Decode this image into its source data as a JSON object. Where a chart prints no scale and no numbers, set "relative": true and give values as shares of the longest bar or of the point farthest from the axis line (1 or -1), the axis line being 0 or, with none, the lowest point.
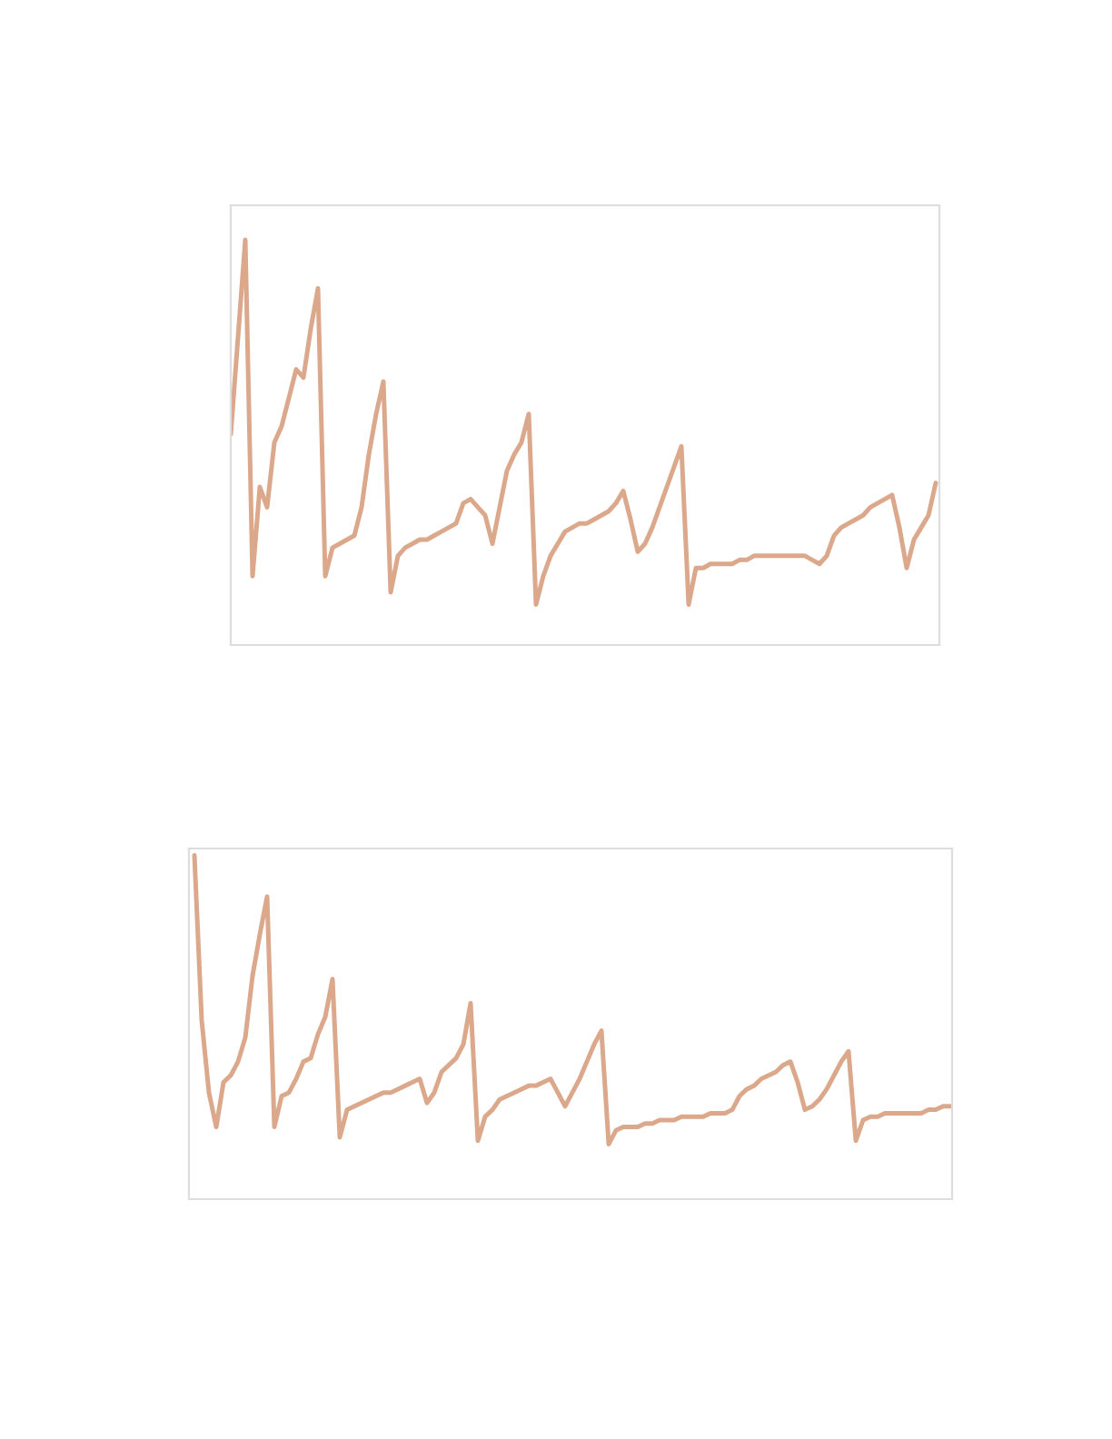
{
  "chart_data": [
    {
      "type": "line",
      "relative": true,
      "categories": [
        null,
        null,
        null,
        null,
        null,
        null,
        null,
        null,
        null,
        null,
        null,
        null,
        null,
        null,
        null,
        null,
        null,
        null,
        null,
        null,
        null,
        null,
        null,
        null,
        null,
        null,
        null,
        null,
        null,
        null,
        null,
        null,
        null,
        null,
        null,
        null,
        null,
        null,
        null,
        null,
        null,
        null,
        null,
        null,
        null,
        null,
        null,
        null,
        null,
        null,
        null,
        null,
        null,
        null,
        null,
        null,
        null,
        null,
        null,
        null,
        null,
        null,
        null,
        null,
        null,
        null,
        null,
        null,
        null,
        null,
        null,
        null,
        null,
        null,
        null,
        null,
        null,
        null,
        null,
        null,
        null,
        null,
        null,
        null,
        null,
        null,
        null,
        null,
        null,
        null,
        null,
        null,
        null,
        null,
        null,
        null,
        null,
        null
      ],
      "series": [
        {
          "color": "#dca88c",
          "values": [
            0.52,
            0.76,
            1.0,
            0.17,
            0.39,
            0.34,
            0.5,
            0.54,
            0.61,
            0.68,
            0.66,
            0.78,
            0.88,
            0.17,
            0.24,
            0.25,
            0.26,
            0.27,
            0.34,
            0.47,
            0.57,
            0.65,
            0.13,
            0.22,
            0.24,
            0.25,
            0.26,
            0.26,
            0.27,
            0.28,
            0.29,
            0.3,
            0.35,
            0.36,
            0.34,
            0.32,
            0.25,
            0.34,
            0.43,
            0.47,
            0.5,
            0.57,
            0.1,
            0.17,
            0.22,
            0.25,
            0.28,
            0.29,
            0.3,
            0.3,
            0.31,
            0.32,
            0.33,
            0.35,
            0.38,
            0.31,
            0.23,
            0.25,
            0.29,
            0.34,
            0.39,
            0.44,
            0.49,
            0.1,
            0.19,
            0.19,
            0.2,
            0.2,
            0.2,
            0.2,
            0.21,
            0.21,
            0.22,
            0.22,
            0.22,
            0.22,
            0.22,
            0.22,
            0.22,
            0.22,
            0.21,
            0.2,
            0.22,
            0.27,
            0.29,
            0.3,
            0.31,
            0.32,
            0.34,
            0.35,
            0.36,
            0.37,
            0.29,
            0.19,
            0.26,
            0.29,
            0.32,
            0.4
          ]
        }
      ]
    },
    {
      "type": "line",
      "relative": true,
      "categories": [
        null,
        null,
        null,
        null,
        null,
        null,
        null,
        null,
        null,
        null,
        null,
        null,
        null,
        null,
        null,
        null,
        null,
        null,
        null,
        null,
        null,
        null,
        null,
        null,
        null,
        null,
        null,
        null,
        null,
        null,
        null,
        null,
        null,
        null,
        null,
        null,
        null,
        null,
        null,
        null,
        null,
        null,
        null,
        null,
        null,
        null,
        null,
        null,
        null,
        null,
        null,
        null,
        null,
        null,
        null,
        null,
        null,
        null,
        null,
        null,
        null,
        null,
        null,
        null,
        null,
        null,
        null,
        null,
        null,
        null,
        null,
        null,
        null,
        null,
        null,
        null,
        null,
        null,
        null,
        null,
        null,
        null,
        null,
        null,
        null,
        null,
        null,
        null,
        null,
        null,
        null,
        null,
        null,
        null,
        null,
        null,
        null,
        null,
        null,
        null,
        null,
        null,
        null,
        null,
        null
      ],
      "series": [
        {
          "color": "#dca88c",
          "values": [
            1.0,
            0.52,
            0.31,
            0.21,
            0.34,
            0.36,
            0.4,
            0.47,
            0.65,
            0.77,
            0.88,
            0.21,
            0.3,
            0.31,
            0.35,
            0.4,
            0.41,
            0.48,
            0.53,
            0.64,
            0.18,
            0.26,
            0.27,
            0.28,
            0.29,
            0.3,
            0.31,
            0.31,
            0.32,
            0.33,
            0.34,
            0.35,
            0.28,
            0.31,
            0.37,
            0.39,
            0.41,
            0.45,
            0.57,
            0.17,
            0.24,
            0.26,
            0.29,
            0.3,
            0.31,
            0.32,
            0.33,
            0.33,
            0.34,
            0.35,
            0.31,
            0.27,
            0.31,
            0.35,
            0.4,
            0.45,
            0.49,
            0.16,
            0.2,
            0.21,
            0.21,
            0.21,
            0.22,
            0.22,
            0.23,
            0.23,
            0.23,
            0.24,
            0.24,
            0.24,
            0.24,
            0.25,
            0.25,
            0.25,
            0.26,
            0.3,
            0.32,
            0.33,
            0.35,
            0.36,
            0.37,
            0.39,
            0.4,
            0.34,
            0.26,
            0.27,
            0.29,
            0.32,
            0.36,
            0.4,
            0.43,
            0.17,
            0.23,
            0.24,
            0.24,
            0.25,
            0.25,
            0.25,
            0.25,
            0.25,
            0.25,
            0.26,
            0.26,
            0.27,
            0.27
          ]
        }
      ]
    }
  ]
}
